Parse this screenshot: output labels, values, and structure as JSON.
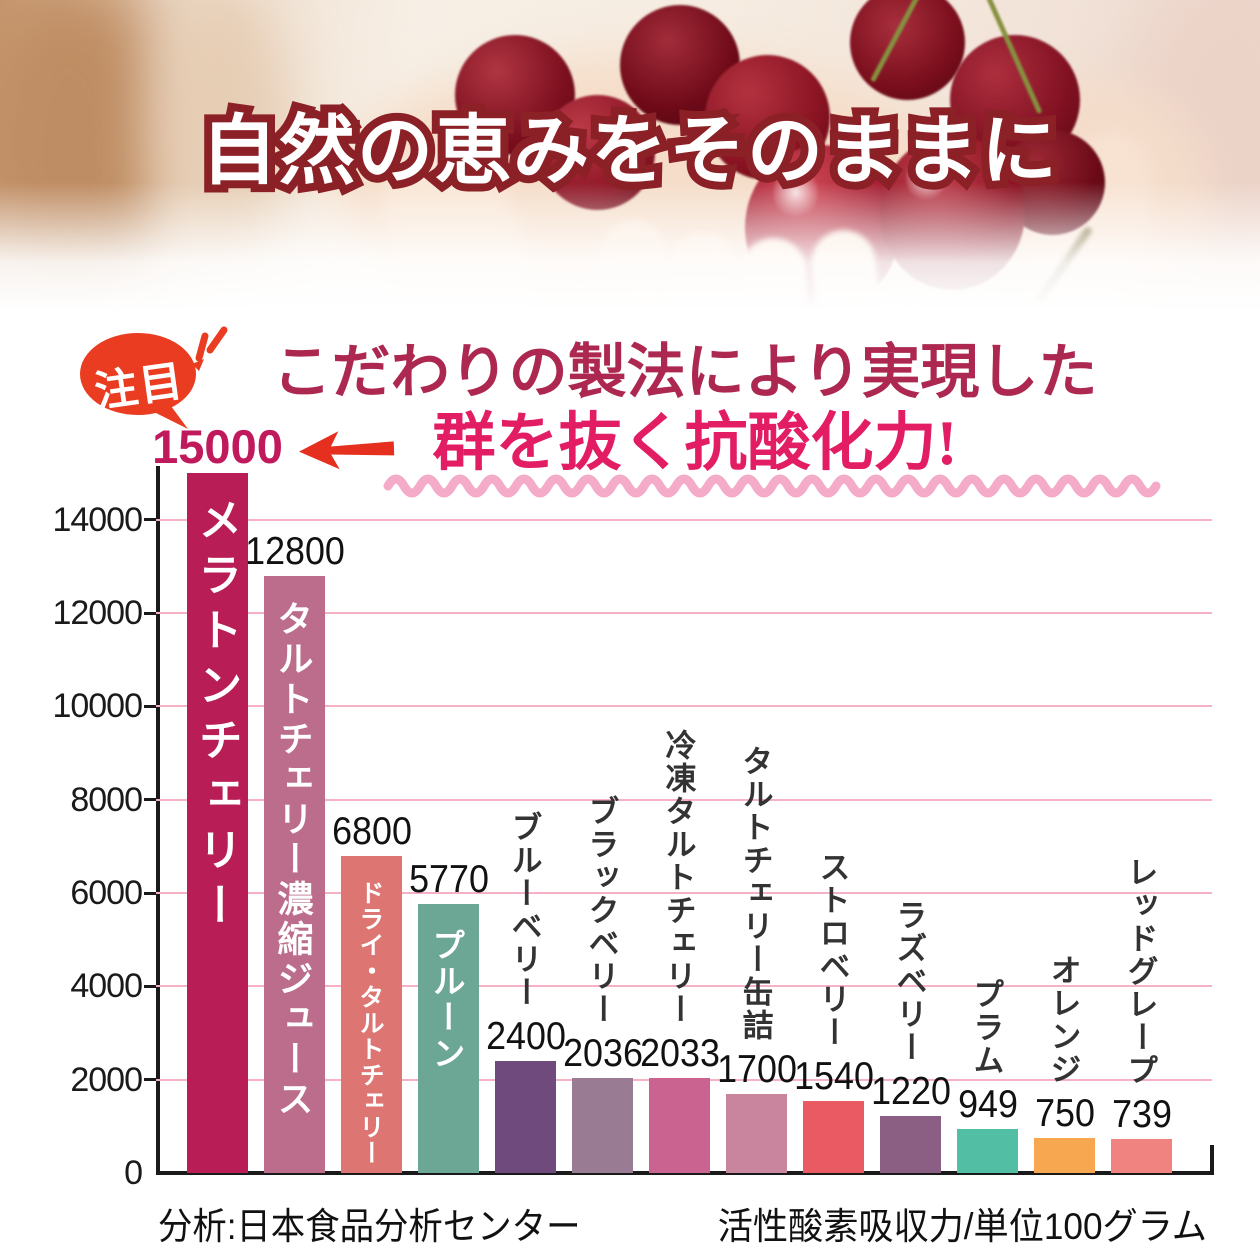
{
  "hero": {
    "title": "自然の恵みをそのままに"
  },
  "callout": {
    "badge": "注目",
    "headline_line1": "こだわりの製法により実現した",
    "headline_line2": "群を抜く抗酸化力!",
    "accent_color": "#e31d64",
    "headline_color": "#ad2850",
    "badge_color": "#e93c20",
    "highlight_value_color": "#c0195c"
  },
  "chart_data": {
    "type": "bar",
    "title": "",
    "ylabel": "",
    "xlabel": "",
    "ylim": [
      0,
      15000
    ],
    "yticks": [
      0,
      2000,
      4000,
      6000,
      8000,
      10000,
      12000,
      14000
    ],
    "grid": true,
    "gridline_color": "#f6b1c4",
    "source_note": "分析:日本食品分析センター",
    "unit_note": "活性酸素吸収力/単位100グラム",
    "bars": [
      {
        "label": "メラトンチェリー",
        "value": 15000,
        "color": "#b81d55",
        "label_position": "inside",
        "highlight": true
      },
      {
        "label": "タルトチェリー濃縮ジュース",
        "value": 12800,
        "color": "#bc6d8c",
        "label_position": "inside",
        "highlight": false
      },
      {
        "label": "ドライ・タルトチェリー",
        "value": 6800,
        "color": "#dd7572",
        "label_position": "inside",
        "highlight": false
      },
      {
        "label": "プルーン",
        "value": 5770,
        "color": "#6ba794",
        "label_position": "inside",
        "highlight": false
      },
      {
        "label": "ブルーベリー",
        "value": 2400,
        "color": "#6f4a7d",
        "label_position": "above",
        "highlight": false
      },
      {
        "label": "ブラックベリー",
        "value": 2036,
        "color": "#9a7b94",
        "label_position": "above",
        "highlight": false
      },
      {
        "label": "冷凍タルトチェリー",
        "value": 2033,
        "color": "#cb6390",
        "label_position": "above",
        "highlight": false
      },
      {
        "label": "タルトチェリー缶詰",
        "value": 1700,
        "color": "#c9849e",
        "label_position": "above",
        "highlight": false
      },
      {
        "label": "ストロベリー",
        "value": 1540,
        "color": "#ea5a62",
        "label_position": "above",
        "highlight": false
      },
      {
        "label": "ラズベリー",
        "value": 1220,
        "color": "#8b5f84",
        "label_position": "above",
        "highlight": false
      },
      {
        "label": "プラム",
        "value": 949,
        "color": "#52bfa4",
        "label_position": "above",
        "highlight": false
      },
      {
        "label": "オレンジ",
        "value": 750,
        "color": "#f6a74f",
        "label_position": "above",
        "highlight": false
      },
      {
        "label": "レッドグレープ",
        "value": 739,
        "color": "#f0837f",
        "label_position": "above",
        "highlight": false
      }
    ]
  }
}
